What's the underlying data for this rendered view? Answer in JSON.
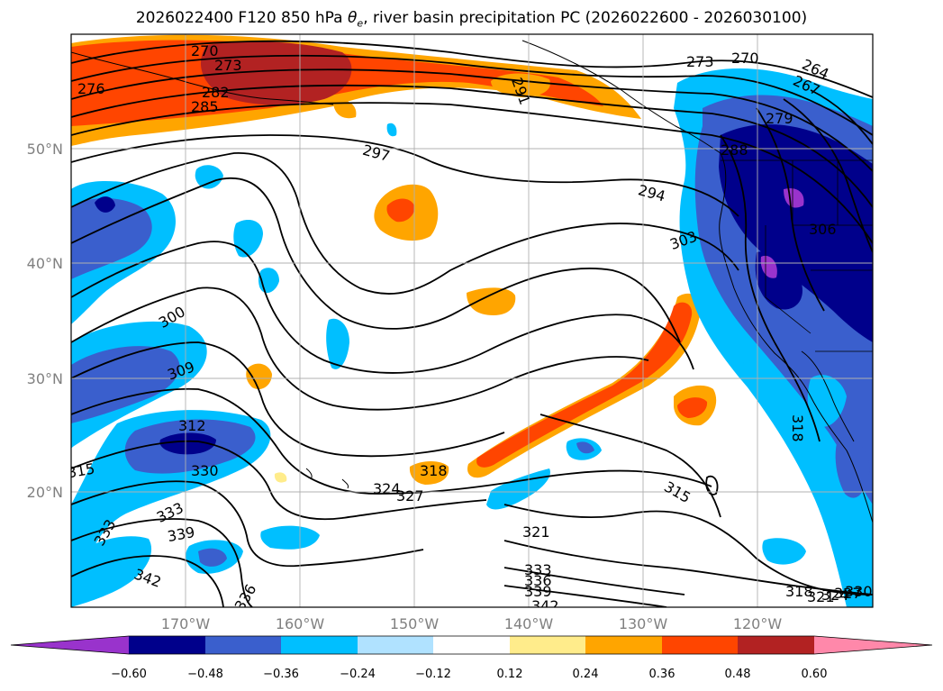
{
  "title": {
    "prefix": "2026022400 F120 850 hPa ",
    "theta": "θ",
    "theta_sub": "e",
    "suffix": ", river basin precipitation PC (2026022600 - 2026030100)"
  },
  "map": {
    "lat_labels": [
      "50°N",
      "40°N",
      "30°N",
      "20°N"
    ],
    "lon_labels": [
      "170°W",
      "160°W",
      "150°W",
      "140°W",
      "130°W",
      "120°W"
    ]
  },
  "colorbar": {
    "colors": [
      "#9933cc",
      "#00008b",
      "#3a5fcd",
      "#00bfff",
      "#b0e2ff",
      "#ffffff",
      "#ffec8b",
      "#ffa500",
      "#ff4500",
      "#b22222",
      "#ff88aa"
    ],
    "tick_labels": [
      "−0.60",
      "−0.48",
      "−0.36",
      "−0.24",
      "−0.12",
      "0.12",
      "0.24",
      "0.36",
      "0.48",
      "0.60"
    ]
  },
  "contour_labels": [
    "270",
    "273",
    "276",
    "282",
    "285",
    "291",
    "273",
    "270",
    "264",
    "267",
    "279",
    "288",
    "297",
    "294",
    "303",
    "306",
    "300",
    "309",
    "312",
    "315",
    "330",
    "318",
    "324",
    "327",
    "315",
    "333",
    "333",
    "339",
    "321",
    "342",
    "336",
    "333",
    "336",
    "339",
    "342",
    "318",
    "318",
    "321",
    "324",
    "327",
    "330"
  ],
  "colors": {
    "positive_strong": "#b22222",
    "positive": "#ff4500",
    "negative_strong": "#00008b",
    "negative": "#3a5fcd"
  }
}
